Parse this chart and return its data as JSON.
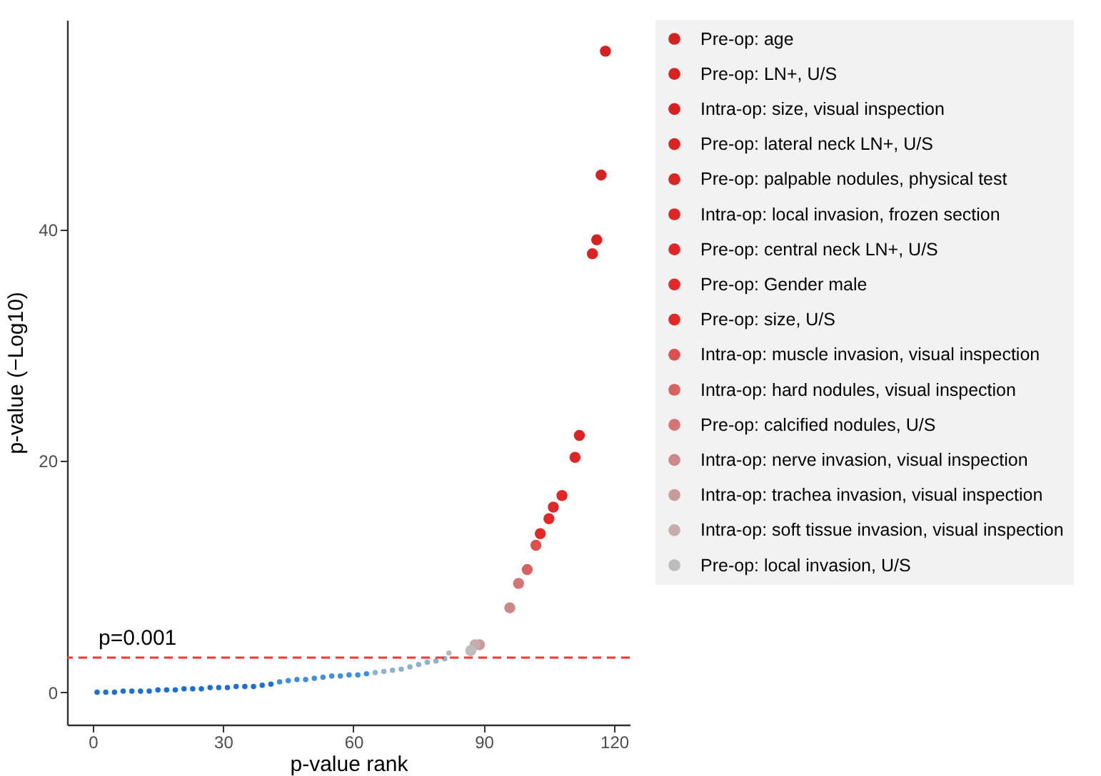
{
  "chart_data": {
    "type": "scatter",
    "xlabel": "p-value rank",
    "ylabel": "p-value (−Log10)",
    "xlim": [
      -5.9,
      123.6
    ],
    "xticks": [
      0,
      30,
      60,
      90,
      120
    ],
    "ylim": [
      -2.8,
      58.1
    ],
    "yticks": [
      0,
      20,
      40
    ],
    "grid": false,
    "legend": "right",
    "marker": "circle",
    "ref_lines": [
      {
        "axis": "y",
        "value": 3,
        "color": "#ff3333",
        "line_style": "dashed"
      }
    ],
    "annotations": [
      "p=0.001"
    ],
    "series": [
      {
        "color": "#1a6fd8",
        "x": [
          1,
          3,
          5,
          7,
          9,
          11,
          13,
          15,
          17,
          19,
          21,
          23,
          25,
          27,
          29,
          31,
          33,
          35,
          37,
          39,
          41
        ],
        "values": [
          0.0,
          0.0,
          0.0,
          0.1,
          0.1,
          0.1,
          0.1,
          0.2,
          0.2,
          0.2,
          0.3,
          0.3,
          0.3,
          0.4,
          0.4,
          0.4,
          0.5,
          0.5,
          0.5,
          0.6,
          0.7
        ]
      },
      {
        "color": "#3f8fe0",
        "x": [
          43,
          45,
          47,
          49,
          51,
          53,
          55,
          57,
          59,
          61,
          63
        ],
        "values": [
          0.9,
          1.0,
          1.1,
          1.1,
          1.2,
          1.3,
          1.4,
          1.4,
          1.5,
          1.5,
          1.6
        ]
      },
      {
        "color": "#8fb0cf",
        "x": [
          65,
          67,
          69,
          71,
          73,
          75,
          77,
          79,
          81
        ],
        "values": [
          1.7,
          1.8,
          1.9,
          2.0,
          2.2,
          2.4,
          2.6,
          2.7,
          2.9
        ]
      },
      {
        "color": "#b8b8b8",
        "x": [
          82
        ],
        "values": [
          3.4
        ]
      },
      {
        "name": "Pre-op: age",
        "color": "#d42222",
        "x": [
          118
        ],
        "values": [
          55.4
        ]
      },
      {
        "name": "Pre-op: LN+, U/S",
        "color": "#d62222",
        "x": [
          117
        ],
        "values": [
          44.7
        ]
      },
      {
        "name": "Intra-op: size, visual inspection",
        "color": "#d82222",
        "x": [
          116
        ],
        "values": [
          39.1
        ]
      },
      {
        "name": "Pre-op: lateral neck LN+, U/S",
        "color": "#da2424",
        "x": [
          115
        ],
        "values": [
          37.9
        ]
      },
      {
        "name": "Pre-op: palpable nodules, physical test",
        "color": "#dc2424",
        "x": [
          112
        ],
        "values": [
          22.2
        ]
      },
      {
        "name": "Intra-op: local invasion, frozen section",
        "color": "#de2626",
        "x": [
          111
        ],
        "values": [
          20.3
        ]
      },
      {
        "name": "Pre-op: central neck LN+, U/S",
        "color": "#e02626",
        "x": [
          108
        ],
        "values": [
          17.0
        ]
      },
      {
        "name": "Pre-op: Gender male",
        "color": "#e22828",
        "x": [
          106
        ],
        "values": [
          16.0
        ]
      },
      {
        "name": "Pre-op: size, U/S",
        "color": "#e42828",
        "x": [
          105,
          103
        ],
        "values": [
          15.0,
          13.7
        ]
      },
      {
        "name": "Intra-op: muscle invasion, visual inspection",
        "color": "#dc5050",
        "x": [
          102
        ],
        "values": [
          12.7
        ]
      },
      {
        "name": "Intra-op: hard nodules, visual inspection",
        "color": "#d86262",
        "x": [
          100
        ],
        "values": [
          10.6
        ]
      },
      {
        "name": "Pre-op: calcified nodules, U/S",
        "color": "#d47474",
        "x": [
          98
        ],
        "values": [
          9.4
        ]
      },
      {
        "name": "Intra-op: nerve invasion, visual inspection",
        "color": "#cf8888",
        "x": [
          96
        ],
        "values": [
          7.3
        ]
      },
      {
        "name": "Intra-op: trachea invasion, visual inspection",
        "color": "#cb9a9a",
        "x": [
          89
        ],
        "values": [
          4.1
        ]
      },
      {
        "name": "Intra-op: soft tissue invasion, visual inspection",
        "color": "#c6acac",
        "x": [
          88
        ],
        "values": [
          4.1
        ]
      },
      {
        "name": "Pre-op: local invasion, U/S",
        "color": "#bdbdbd",
        "x": [
          87
        ],
        "values": [
          3.6
        ]
      }
    ]
  }
}
